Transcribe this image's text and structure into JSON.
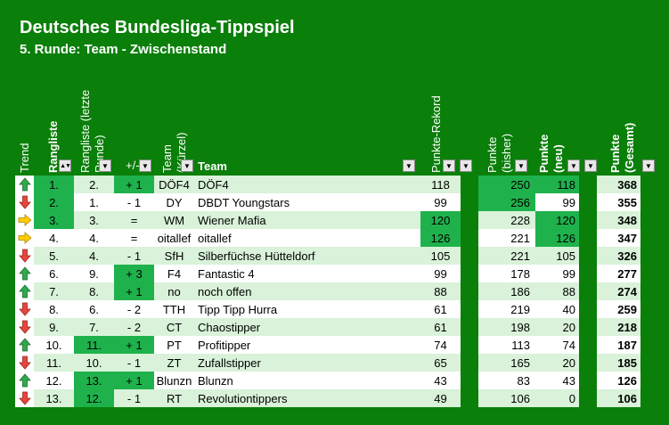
{
  "title": "Deutsches Bundesliga-Tippspiel",
  "subtitle": "5. Runde: Team - Zwischenstand",
  "headers": {
    "trend": "Trend",
    "rangliste": "Rangliste",
    "rangliste_letzte": "Rangliste (letzte Runde)",
    "diff": "+/-",
    "kurz": "Team (Kürzel)",
    "team": "Team",
    "rekord": "Punkte-Rekord",
    "bisher": "Punkte (bisher)",
    "neu": "Punkte (neu)",
    "gesamt": "Punkte (Gesamt)"
  },
  "colors": {
    "background": "#0a7f0a",
    "row_light": "#d9f2d9",
    "highlight": "#1fb24c",
    "arrow_up": "#2eaa4a",
    "arrow_down": "#e8453c",
    "arrow_same": "#ffcc00"
  },
  "rows": [
    {
      "trend": "up",
      "rank": "1.",
      "prev": "2.",
      "diff": "+ 1",
      "kurz": "DÖF4",
      "team": "DÖF4",
      "rec": "118",
      "bisher": "250",
      "neu": "118",
      "ges": "368"
    },
    {
      "trend": "down",
      "rank": "2.",
      "prev": "1.",
      "diff": "- 1",
      "kurz": "DY",
      "team": "DBDT Youngstars",
      "rec": "99",
      "bisher": "256",
      "neu": "99",
      "ges": "355"
    },
    {
      "trend": "same",
      "rank": "3.",
      "prev": "3.",
      "diff": "=",
      "kurz": "WM",
      "team": "Wiener Mafia",
      "rec": "120",
      "bisher": "228",
      "neu": "120",
      "ges": "348"
    },
    {
      "trend": "same",
      "rank": "4.",
      "prev": "4.",
      "diff": "=",
      "kurz": "oitallef",
      "team": "oitallef",
      "rec": "126",
      "bisher": "221",
      "neu": "126",
      "ges": "347"
    },
    {
      "trend": "down",
      "rank": "5.",
      "prev": "4.",
      "diff": "- 1",
      "kurz": "SfH",
      "team": "Silberfüchse Hütteldorf",
      "rec": "105",
      "bisher": "221",
      "neu": "105",
      "ges": "326"
    },
    {
      "trend": "up",
      "rank": "6.",
      "prev": "9.",
      "diff": "+ 3",
      "kurz": "F4",
      "team": "Fantastic 4",
      "rec": "99",
      "bisher": "178",
      "neu": "99",
      "ges": "277"
    },
    {
      "trend": "up",
      "rank": "7.",
      "prev": "8.",
      "diff": "+ 1",
      "kurz": "no",
      "team": "noch offen",
      "rec": "88",
      "bisher": "186",
      "neu": "88",
      "ges": "274"
    },
    {
      "trend": "down",
      "rank": "8.",
      "prev": "6.",
      "diff": "- 2",
      "kurz": "TTH",
      "team": "Tipp Tipp Hurra",
      "rec": "61",
      "bisher": "219",
      "neu": "40",
      "ges": "259"
    },
    {
      "trend": "down",
      "rank": "9.",
      "prev": "7.",
      "diff": "- 2",
      "kurz": "CT",
      "team": "Chaostipper",
      "rec": "61",
      "bisher": "198",
      "neu": "20",
      "ges": "218"
    },
    {
      "trend": "up",
      "rank": "10.",
      "prev": "11.",
      "diff": "+ 1",
      "kurz": "PT",
      "team": "Profitipper",
      "rec": "74",
      "bisher": "113",
      "neu": "74",
      "ges": "187"
    },
    {
      "trend": "down",
      "rank": "11.",
      "prev": "10.",
      "diff": "- 1",
      "kurz": "ZT",
      "team": "Zufallstipper",
      "rec": "65",
      "bisher": "165",
      "neu": "20",
      "ges": "185"
    },
    {
      "trend": "up",
      "rank": "12.",
      "prev": "13.",
      "diff": "+ 1",
      "kurz": "Blunzn",
      "team": "Blunzn",
      "rec": "43",
      "bisher": "83",
      "neu": "43",
      "ges": "126"
    },
    {
      "trend": "down",
      "rank": "13.",
      "prev": "12.",
      "diff": "- 1",
      "kurz": "RT",
      "team": "Revolutiontippers",
      "rec": "49",
      "bisher": "106",
      "neu": "0",
      "ges": "106"
    }
  ]
}
